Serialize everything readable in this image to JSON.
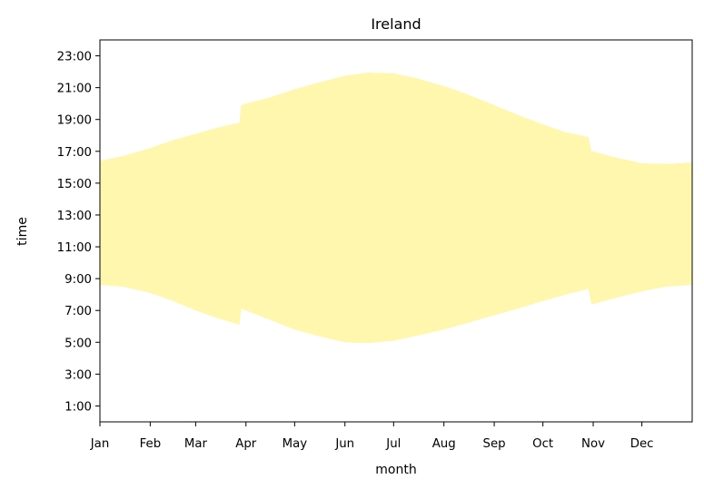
{
  "chart_data": {
    "type": "area",
    "title": "Ireland",
    "xlabel": "month",
    "ylabel": "time",
    "x_ticks": [
      "Jan",
      "Feb",
      "Mar",
      "Apr",
      "May",
      "Jun",
      "Jul",
      "Aug",
      "Sep",
      "Oct",
      "Nov",
      "Dec"
    ],
    "y_ticks": [
      "1:00",
      "3:00",
      "5:00",
      "7:00",
      "9:00",
      "11:00",
      "13:00",
      "15:00",
      "17:00",
      "19:00",
      "21:00",
      "23:00"
    ],
    "y_tick_values": [
      1,
      3,
      5,
      7,
      9,
      11,
      13,
      15,
      17,
      19,
      21,
      23
    ],
    "xlim": [
      1,
      366
    ],
    "ylim": [
      0,
      24
    ],
    "fill_color": "#fff7ad",
    "grid": false,
    "series": [
      {
        "day_of_year": [
          1,
          15,
          32,
          46,
          60,
          74,
          87,
          88,
          91,
          106,
          121,
          135,
          152,
          166,
          182,
          196,
          213,
          227,
          244,
          258,
          274,
          288,
          302,
          304,
          305,
          319,
          335,
          350,
          366
        ],
        "sunrise_hours": [
          8.6,
          8.5,
          8.1,
          7.6,
          7.0,
          6.5,
          6.1,
          7.1,
          7.0,
          6.4,
          5.8,
          5.4,
          5.0,
          4.95,
          5.1,
          5.4,
          5.8,
          6.2,
          6.7,
          7.1,
          7.6,
          8.0,
          8.35,
          7.4,
          7.4,
          7.8,
          8.2,
          8.5,
          8.6
        ],
        "sunset_hours": [
          16.4,
          16.7,
          17.2,
          17.7,
          18.1,
          18.5,
          18.8,
          19.9,
          20.0,
          20.4,
          20.9,
          21.3,
          21.75,
          21.95,
          21.9,
          21.6,
          21.1,
          20.6,
          19.9,
          19.3,
          18.7,
          18.2,
          17.9,
          17.0,
          17.0,
          16.6,
          16.25,
          16.2,
          16.3
        ]
      }
    ]
  }
}
